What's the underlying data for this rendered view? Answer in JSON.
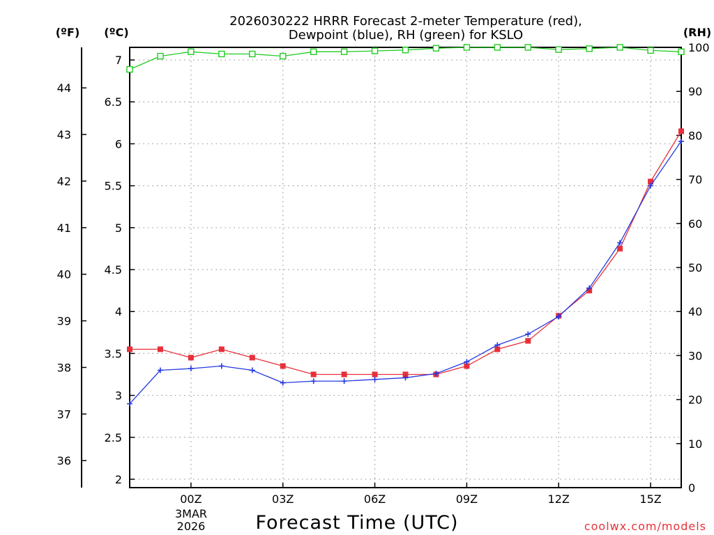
{
  "title_line1": "2026030222 HRRR Forecast 2-meter Temperature (red),",
  "title_line2": "Dewpoint (blue), RH (green) for KSLO",
  "credit": "coolwx.com/models",
  "colors": {
    "temperature": "#e8303a",
    "dewpoint": "#2438e0",
    "rh": "#22cc22",
    "grid": "#9a9a9a"
  },
  "chart_data": {
    "type": "line",
    "title": "2026030222 HRRR Forecast 2-meter Temperature (red), Dewpoint (blue), RH (green) for KSLO",
    "xlabel": "Forecast Time (UTC)",
    "x_hours": [
      -2,
      -1,
      0,
      1,
      2,
      3,
      4,
      5,
      6,
      7,
      8,
      9,
      10,
      11,
      12,
      13,
      14,
      15,
      16
    ],
    "xlim": [
      -2,
      16
    ],
    "x_ticks": [
      {
        "hour": 0,
        "label": "00Z"
      },
      {
        "hour": 3,
        "label": "03Z"
      },
      {
        "hour": 6,
        "label": "06Z"
      },
      {
        "hour": 9,
        "label": "09Z"
      },
      {
        "hour": 12,
        "label": "12Z"
      },
      {
        "hour": 15,
        "label": "15Z"
      }
    ],
    "date_label": {
      "line1": "3MAR",
      "line2": "2026"
    },
    "y_celsius": {
      "unit_label": "(ºC)",
      "lim": [
        1.9,
        7.15
      ],
      "ticks": [
        {
          "value": 2,
          "label": "2"
        },
        {
          "value": 2.5,
          "label": "2.5"
        },
        {
          "value": 3,
          "label": "3"
        },
        {
          "value": 3.5,
          "label": "3.5"
        },
        {
          "value": 4,
          "label": "4"
        },
        {
          "value": 4.5,
          "label": "4.5"
        },
        {
          "value": 5,
          "label": "5"
        },
        {
          "value": 5.5,
          "label": "5.5"
        },
        {
          "value": 6,
          "label": "6"
        },
        {
          "value": 6.5,
          "label": "6.5"
        },
        {
          "value": 7,
          "label": "7"
        }
      ]
    },
    "y_fahrenheit": {
      "unit_label": "(ºF)",
      "ticks": [
        {
          "value": 36,
          "label": "36"
        },
        {
          "value": 37,
          "label": "37"
        },
        {
          "value": 38,
          "label": "38"
        },
        {
          "value": 39,
          "label": "39"
        },
        {
          "value": 40,
          "label": "40"
        },
        {
          "value": 41,
          "label": "41"
        },
        {
          "value": 42,
          "label": "42"
        },
        {
          "value": 43,
          "label": "43"
        },
        {
          "value": 44,
          "label": "44"
        }
      ]
    },
    "y_rh": {
      "unit_label": "(RH)",
      "lim": [
        0,
        100
      ],
      "ticks": [
        {
          "value": 0,
          "label": "0"
        },
        {
          "value": 10,
          "label": "10"
        },
        {
          "value": 20,
          "label": "20"
        },
        {
          "value": 30,
          "label": "30"
        },
        {
          "value": 40,
          "label": "40"
        },
        {
          "value": 50,
          "label": "50"
        },
        {
          "value": 60,
          "label": "60"
        },
        {
          "value": 70,
          "label": "70"
        },
        {
          "value": 80,
          "label": "80"
        },
        {
          "value": 90,
          "label": "90"
        },
        {
          "value": 100,
          "label": "100"
        }
      ]
    },
    "series": [
      {
        "name": "Temperature",
        "unit": "C",
        "color_key": "temperature",
        "marker": "filled-square",
        "values": [
          3.55,
          3.55,
          3.45,
          3.55,
          3.45,
          3.35,
          3.25,
          3.25,
          3.25,
          3.25,
          3.25,
          3.35,
          3.55,
          3.65,
          3.95,
          4.25,
          4.75,
          5.55,
          6.15
        ]
      },
      {
        "name": "Dewpoint",
        "unit": "C",
        "color_key": "dewpoint",
        "marker": "plus",
        "values": [
          2.9,
          3.3,
          3.32,
          3.35,
          3.3,
          3.15,
          3.17,
          3.17,
          3.19,
          3.21,
          3.26,
          3.4,
          3.6,
          3.73,
          3.94,
          4.28,
          4.82,
          5.5,
          6.03
        ]
      },
      {
        "name": "RH",
        "unit": "%",
        "color_key": "rh",
        "marker": "open-square",
        "values": [
          95,
          98,
          99,
          98.5,
          98.5,
          98,
          99,
          99,
          99.2,
          99.4,
          99.8,
          100,
          100,
          100,
          99.5,
          99.7,
          100,
          99.3,
          99
        ]
      }
    ]
  }
}
